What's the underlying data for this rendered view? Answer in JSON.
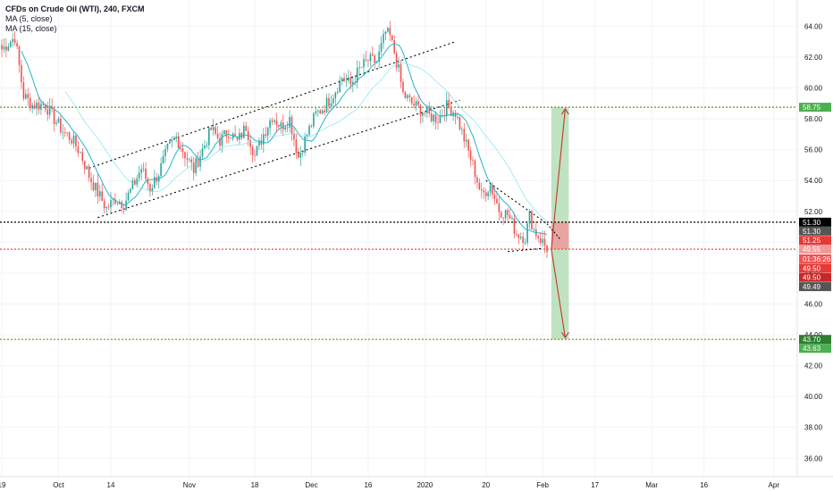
{
  "legend": {
    "title": "CFDs on Crude Oil (WTI), 240, FXCM",
    "ma5": "MA (5, close)",
    "ma15": "MA (15, close)"
  },
  "colors": {
    "up": "#26a69a",
    "down": "#ef5350",
    "ma": "#26b5c9",
    "green_line": "#6b8e23",
    "red_line": "#ff4444",
    "black_line": "#000000",
    "target_fill": "#a5d6a7",
    "stop_fill": "#ef9a9a",
    "arrow": "#c0392b"
  },
  "chart_data": {
    "type": "candlestick",
    "symbol": "CFDs on Crude Oil (WTI)",
    "interval": "240",
    "source": "FXCM",
    "ylim": [
      34.8,
      65.7
    ],
    "y_ticks": [
      "36.00",
      "38.00",
      "40.00",
      "42.00",
      "44.00",
      "46.00",
      "48.00",
      "50.00",
      "52.00",
      "54.00",
      "56.00",
      "58.00",
      "60.00",
      "62.00",
      "64.00"
    ],
    "x_ticks": [
      "19",
      "Oct",
      "14",
      "Nov",
      "18",
      "Dec",
      "16",
      "2020",
      "20",
      "Feb",
      "17",
      "Mar",
      "16",
      "Apr"
    ],
    "price_path": [
      {
        "x": 0,
        "y": 62.5
      },
      {
        "x": 3,
        "y": 63.3
      },
      {
        "x": 5,
        "y": 59.5
      },
      {
        "x": 7,
        "y": 58.9
      },
      {
        "x": 10,
        "y": 58.9
      },
      {
        "x": 12,
        "y": 58.0
      },
      {
        "x": 14,
        "y": 57.2
      },
      {
        "x": 16,
        "y": 56.7
      },
      {
        "x": 18,
        "y": 55.8
      },
      {
        "x": 20,
        "y": 54.3
      },
      {
        "x": 22,
        "y": 53.2
      },
      {
        "x": 24,
        "y": 52.2
      },
      {
        "x": 26,
        "y": 52.8
      },
      {
        "x": 28,
        "y": 52.5
      },
      {
        "x": 30,
        "y": 53.6
      },
      {
        "x": 32,
        "y": 54.8
      },
      {
        "x": 34,
        "y": 53.5
      },
      {
        "x": 36,
        "y": 54.5
      },
      {
        "x": 38,
        "y": 56.0
      },
      {
        "x": 40,
        "y": 56.8
      },
      {
        "x": 42,
        "y": 55.7
      },
      {
        "x": 44,
        "y": 54.7
      },
      {
        "x": 46,
        "y": 56.0
      },
      {
        "x": 48,
        "y": 57.3
      },
      {
        "x": 50,
        "y": 56.6
      },
      {
        "x": 52,
        "y": 57.2
      },
      {
        "x": 54,
        "y": 56.5
      },
      {
        "x": 56,
        "y": 57.5
      },
      {
        "x": 58,
        "y": 55.6
      },
      {
        "x": 60,
        "y": 57.0
      },
      {
        "x": 62,
        "y": 58.2
      },
      {
        "x": 64,
        "y": 57.5
      },
      {
        "x": 66,
        "y": 58.0
      },
      {
        "x": 68,
        "y": 55.5
      },
      {
        "x": 70,
        "y": 57.0
      },
      {
        "x": 72,
        "y": 58.3
      },
      {
        "x": 74,
        "y": 58.8
      },
      {
        "x": 76,
        "y": 59.6
      },
      {
        "x": 78,
        "y": 60.7
      },
      {
        "x": 80,
        "y": 60.2
      },
      {
        "x": 82,
        "y": 61.2
      },
      {
        "x": 84,
        "y": 61.8
      },
      {
        "x": 86,
        "y": 61.7
      },
      {
        "x": 88,
        "y": 63.6
      },
      {
        "x": 89,
        "y": 63.3
      },
      {
        "x": 90,
        "y": 62.3
      },
      {
        "x": 91,
        "y": 61.1
      },
      {
        "x": 92,
        "y": 59.6
      },
      {
        "x": 94,
        "y": 59.0
      },
      {
        "x": 96,
        "y": 58.6
      },
      {
        "x": 98,
        "y": 58.2
      },
      {
        "x": 100,
        "y": 58.0
      },
      {
        "x": 102,
        "y": 58.8
      },
      {
        "x": 104,
        "y": 58.4
      },
      {
        "x": 106,
        "y": 56.7
      },
      {
        "x": 108,
        "y": 55.0
      },
      {
        "x": 110,
        "y": 53.0
      },
      {
        "x": 112,
        "y": 53.7
      },
      {
        "x": 114,
        "y": 52.1
      },
      {
        "x": 116,
        "y": 51.8
      },
      {
        "x": 118,
        "y": 50.6
      },
      {
        "x": 120,
        "y": 50.3
      },
      {
        "x": 121,
        "y": 51.7
      },
      {
        "x": 122,
        "y": 50.8
      },
      {
        "x": 123,
        "y": 50.4
      },
      {
        "x": 124,
        "y": 50.0
      },
      {
        "x": 125,
        "y": 49.6
      }
    ],
    "levels": [
      {
        "price": 58.75,
        "label": "58.75",
        "style": "green-dotted"
      },
      {
        "price": 51.3,
        "label": "51.30",
        "style": "black-dotted"
      },
      {
        "price": 49.55,
        "label": "49.55",
        "style": "red-dotted"
      },
      {
        "price": 43.7,
        "label": "43.70",
        "style": "green-dotted"
      }
    ],
    "price_labels": [
      {
        "price": 58.75,
        "text": "58.75",
        "color": "#4caf50"
      },
      {
        "price": 51.3,
        "text": "51.30",
        "color": "#000000"
      },
      {
        "price": 50.72,
        "text": "51.30",
        "color": "#555555"
      },
      {
        "price": 50.12,
        "text": "51.25",
        "color": "#e53935"
      },
      {
        "price": 49.55,
        "text": "49.55",
        "color": "#ef9a9a"
      },
      {
        "price": 48.92,
        "text": "01:36:26",
        "color": "#ef5350"
      },
      {
        "price": 48.32,
        "text": "49.50",
        "color": "#e53935"
      },
      {
        "price": 47.72,
        "text": "49.50",
        "color": "#c62828"
      },
      {
        "price": 47.12,
        "text": "49.49",
        "color": "#555555"
      },
      {
        "price": 43.7,
        "text": "43.70",
        "color": "#2e7d32"
      },
      {
        "price": 43.12,
        "text": "43.63",
        "color": "#4caf50"
      }
    ],
    "channel": {
      "upper": [
        {
          "x": 20,
          "y": 54.8
        },
        {
          "x": 104,
          "y": 63.0
        }
      ],
      "lower": [
        {
          "x": 22,
          "y": 51.6
        },
        {
          "x": 105,
          "y": 59.2
        }
      ]
    },
    "wedge": {
      "upper": [
        {
          "x": 111,
          "y": 54.0
        },
        {
          "x": 125,
          "y": 51.2
        }
      ],
      "lower": [
        {
          "x": 116,
          "y": 49.4
        },
        {
          "x": 124,
          "y": 49.6
        }
      ]
    },
    "projection": {
      "target_high": 58.75,
      "target_low": 43.7,
      "stop_high": 51.3,
      "entry": 49.55,
      "start_x": 126,
      "end_x": 130
    }
  }
}
